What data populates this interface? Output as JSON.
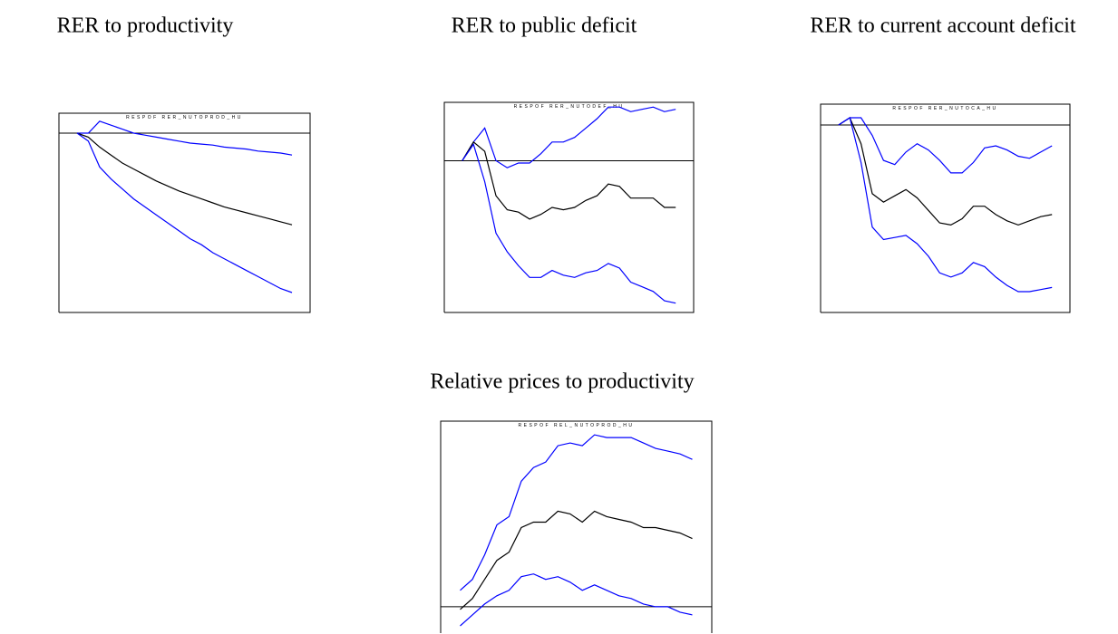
{
  "chart_data": [
    {
      "type": "line",
      "title": "RER to productivity",
      "subtitle": "RESPOF RER_NUTOPROD_HU",
      "x": [
        1,
        2,
        3,
        4,
        5,
        6,
        7,
        8,
        9,
        10,
        11,
        12,
        13,
        14,
        15,
        16,
        17,
        18,
        19,
        20
      ],
      "xlim": [
        -0.6,
        21.6
      ],
      "ylim": [
        -9,
        1
      ],
      "series": [
        {
          "color": "#0000ff",
          "values": [
            0,
            0,
            0.6,
            0.4,
            0.2,
            0,
            -0.1,
            -0.2,
            -0.3,
            -0.4,
            -0.5,
            -0.55,
            -0.6,
            -0.7,
            -0.75,
            -0.8,
            -0.9,
            -0.95,
            -1.0,
            -1.1
          ]
        },
        {
          "color": "#000000",
          "values": [
            0,
            -0.2,
            -0.7,
            -1.1,
            -1.5,
            -1.8,
            -2.1,
            -2.4,
            -2.65,
            -2.9,
            -3.1,
            -3.3,
            -3.5,
            -3.7,
            -3.85,
            -4.0,
            -4.15,
            -4.3,
            -4.45,
            -4.6
          ]
        },
        {
          "color": "#0000ff",
          "values": [
            0,
            -0.4,
            -1.7,
            -2.3,
            -2.8,
            -3.3,
            -3.7,
            -4.1,
            -4.5,
            -4.9,
            -5.3,
            -5.6,
            -6.0,
            -6.3,
            -6.6,
            -6.9,
            -7.2,
            -7.5,
            -7.8,
            -8.0
          ]
        }
      ]
    },
    {
      "type": "line",
      "title": "RER to public deficit",
      "subtitle": "RESPOF RER_NUTODEF_HU",
      "x": [
        1,
        2,
        3,
        4,
        5,
        6,
        7,
        8,
        9,
        10,
        11,
        12,
        13,
        14,
        15,
        16,
        17,
        18,
        19,
        20
      ],
      "xlim": [
        -0.6,
        21.6
      ],
      "ylim": [
        -6.5,
        2.5
      ],
      "series": [
        {
          "color": "#0000ff",
          "values": [
            0,
            0.8,
            1.4,
            0,
            -0.3,
            -0.1,
            -0.1,
            0.3,
            0.8,
            0.8,
            1.0,
            1.4,
            1.8,
            2.3,
            2.3,
            2.1,
            2.2,
            2.3,
            2.1,
            2.2
          ]
        },
        {
          "color": "#000000",
          "values": [
            0,
            0.8,
            0.4,
            -1.5,
            -2.1,
            -2.2,
            -2.5,
            -2.3,
            -2.0,
            -2.1,
            -2.0,
            -1.7,
            -1.5,
            -1.0,
            -1.1,
            -1.6,
            -1.6,
            -1.6,
            -2.0,
            -2.0
          ]
        },
        {
          "color": "#0000ff",
          "values": [
            0,
            0.7,
            -0.9,
            -3.1,
            -3.9,
            -4.5,
            -5.0,
            -5.0,
            -4.7,
            -4.9,
            -5.0,
            -4.8,
            -4.7,
            -4.4,
            -4.6,
            -5.2,
            -5.4,
            -5.6,
            -6.0,
            -6.1
          ]
        }
      ]
    },
    {
      "type": "line",
      "title": "RER to current account deficit",
      "subtitle": "RESPOF RER_NUTOCA_HU",
      "x": [
        1,
        2,
        3,
        4,
        5,
        6,
        7,
        8,
        9,
        10,
        11,
        12,
        13,
        14,
        15,
        16,
        17,
        18,
        19,
        20
      ],
      "xlim": [
        -0.6,
        21.6
      ],
      "ylim": [
        -9,
        1
      ],
      "series": [
        {
          "color": "#0000ff",
          "values": [
            0,
            0.35,
            0.35,
            -0.5,
            -1.7,
            -1.9,
            -1.3,
            -0.9,
            -1.2,
            -1.7,
            -2.3,
            -2.3,
            -1.8,
            -1.1,
            -1.0,
            -1.2,
            -1.5,
            -1.6,
            -1.3,
            -1.0
          ]
        },
        {
          "color": "#000000",
          "values": [
            0,
            0.35,
            -0.9,
            -3.3,
            -3.7,
            -3.4,
            -3.1,
            -3.5,
            -4.1,
            -4.7,
            -4.8,
            -4.5,
            -3.9,
            -3.9,
            -4.3,
            -4.6,
            -4.8,
            -4.6,
            -4.4,
            -4.3
          ]
        },
        {
          "color": "#0000ff",
          "values": [
            0,
            0.35,
            -1.8,
            -4.9,
            -5.5,
            -5.4,
            -5.3,
            -5.7,
            -6.3,
            -7.1,
            -7.3,
            -7.1,
            -6.6,
            -6.8,
            -7.3,
            -7.7,
            -8.0,
            -8.0,
            -7.9,
            -7.8
          ]
        }
      ]
    },
    {
      "type": "line",
      "title": "Relative prices to productivity",
      "subtitle": "RESPOF REL_NUTOPROD_HU",
      "x": [
        1,
        2,
        3,
        4,
        5,
        6,
        7,
        8,
        9,
        10,
        11,
        12,
        13,
        14,
        15,
        16,
        17,
        18,
        19,
        20
      ],
      "xlim": [
        -0.6,
        21.6
      ],
      "ylim": [
        -1,
        6.8
      ],
      "series": [
        {
          "color": "#0000ff",
          "values": [
            0.6,
            1.0,
            1.9,
            3.0,
            3.3,
            4.6,
            5.1,
            5.3,
            5.9,
            6.0,
            5.9,
            6.3,
            6.2,
            6.2,
            6.2,
            6.0,
            5.8,
            5.7,
            5.6,
            5.4
          ]
        },
        {
          "color": "#000000",
          "values": [
            -0.1,
            0.3,
            1.0,
            1.7,
            2.0,
            2.9,
            3.1,
            3.1,
            3.5,
            3.4,
            3.1,
            3.5,
            3.3,
            3.2,
            3.1,
            2.9,
            2.9,
            2.8,
            2.7,
            2.5
          ]
        },
        {
          "color": "#0000ff",
          "values": [
            -0.7,
            -0.3,
            0.1,
            0.4,
            0.6,
            1.1,
            1.2,
            1.0,
            1.1,
            0.9,
            0.6,
            0.8,
            0.6,
            0.4,
            0.3,
            0.1,
            0,
            0,
            -0.2,
            -0.3
          ]
        }
      ]
    }
  ]
}
